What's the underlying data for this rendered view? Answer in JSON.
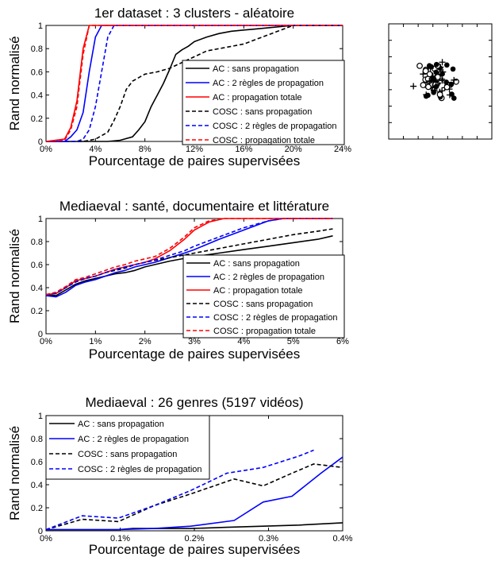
{
  "chart_data": [
    {
      "type": "line",
      "title": "1er dataset : 3 clusters - aléatoire",
      "xlabel": "Pourcentage de paires supervisées",
      "ylabel": "Rand normalisé",
      "xlim": [
        0,
        24
      ],
      "ylim": [
        0,
        1
      ],
      "xticks": [
        "0%",
        "4%",
        "8%",
        "12%",
        "16%",
        "20%",
        "24%"
      ],
      "yticks": [
        "0",
        "0.2",
        "0.4",
        "0.6",
        "0.8",
        "1"
      ],
      "legend_position": "right",
      "series": [
        {
          "name": "AC : sans propagation",
          "color": "#000000",
          "dash": "solid",
          "x": [
            0,
            5,
            6,
            7,
            7.5,
            8,
            8.5,
            9,
            9.5,
            10,
            10.5,
            11,
            11.5,
            12,
            13,
            14,
            15,
            16,
            17,
            18,
            19,
            20,
            24
          ],
          "y": [
            0,
            0,
            0.01,
            0.04,
            0.1,
            0.17,
            0.3,
            0.4,
            0.5,
            0.62,
            0.75,
            0.79,
            0.82,
            0.86,
            0.9,
            0.93,
            0.95,
            0.96,
            0.97,
            0.98,
            0.99,
            1,
            1
          ]
        },
        {
          "name": "AC : 2 règles de propagation",
          "color": "#0000ff",
          "dash": "solid",
          "x": [
            0,
            1.5,
            2,
            2.5,
            3,
            3.5,
            4,
            4.5,
            5,
            24
          ],
          "y": [
            0,
            0,
            0.04,
            0.1,
            0.25,
            0.6,
            0.9,
            1,
            1,
            1
          ]
        },
        {
          "name": "AC : propagation totale",
          "color": "#ff0000",
          "dash": "solid",
          "x": [
            0,
            1.5,
            2,
            2.5,
            3,
            3.5,
            24
          ],
          "y": [
            0,
            0.02,
            0.12,
            0.35,
            0.8,
            1,
            1
          ]
        },
        {
          "name": "COSC : sans propagation",
          "color": "#000000",
          "dash": "dashed",
          "x": [
            0,
            3,
            4,
            5,
            5.5,
            6,
            6.5,
            7,
            7.5,
            8,
            9,
            10,
            11,
            12,
            13,
            14,
            15,
            16,
            17,
            18,
            19,
            20,
            24
          ],
          "y": [
            0,
            0,
            0.02,
            0.08,
            0.18,
            0.3,
            0.45,
            0.52,
            0.55,
            0.58,
            0.6,
            0.63,
            0.68,
            0.73,
            0.78,
            0.8,
            0.82,
            0.84,
            0.88,
            0.92,
            0.96,
            1,
            1
          ]
        },
        {
          "name": "COSC : 2 règles de propagation",
          "color": "#0000ff",
          "dash": "dashed",
          "x": [
            0,
            2.5,
            3,
            3.5,
            4,
            4.5,
            5,
            5.5,
            24
          ],
          "y": [
            0,
            0,
            0.02,
            0.1,
            0.3,
            0.6,
            0.9,
            1,
            1
          ]
        },
        {
          "name": "COSC : propagation totale",
          "color": "#ff0000",
          "dash": "dashed",
          "x": [
            0,
            1.5,
            2,
            2.5,
            3,
            3.5,
            24
          ],
          "y": [
            0,
            0.01,
            0.1,
            0.3,
            0.75,
            1,
            1
          ]
        }
      ]
    },
    {
      "type": "line",
      "title": "Mediaeval : santé, documentaire et littérature",
      "xlabel": "Pourcentage de paires supervisées",
      "ylabel": "Rand normalisé",
      "xlim": [
        0,
        6
      ],
      "ylim": [
        0,
        1
      ],
      "xticks": [
        "0%",
        "1%",
        "2%",
        "3%",
        "4%",
        "5%",
        "6%"
      ],
      "yticks": [
        "0",
        "0.2",
        "0.4",
        "0.6",
        "0.8",
        "1"
      ],
      "legend_position": "bottom-right",
      "series": [
        {
          "name": "AC : sans propagation",
          "color": "#000000",
          "dash": "solid",
          "x": [
            0,
            0.2,
            0.4,
            0.6,
            0.8,
            1,
            1.2,
            1.4,
            1.6,
            1.8,
            2,
            2.5,
            3,
            3.5,
            4,
            4.5,
            5,
            5.5,
            5.8
          ],
          "y": [
            0.34,
            0.33,
            0.38,
            0.43,
            0.46,
            0.48,
            0.5,
            0.52,
            0.53,
            0.55,
            0.58,
            0.63,
            0.67,
            0.7,
            0.73,
            0.76,
            0.79,
            0.82,
            0.85
          ]
        },
        {
          "name": "AC : 2 règles de propagation",
          "color": "#0000ff",
          "dash": "solid",
          "x": [
            0,
            0.2,
            0.4,
            0.6,
            0.8,
            1,
            1.2,
            1.4,
            1.6,
            1.8,
            2,
            2.2,
            2.5,
            2.8,
            3,
            3.5,
            4,
            4.5,
            4.8,
            5.8
          ],
          "y": [
            0.33,
            0.32,
            0.36,
            0.42,
            0.45,
            0.47,
            0.5,
            0.53,
            0.55,
            0.58,
            0.6,
            0.62,
            0.66,
            0.7,
            0.73,
            0.82,
            0.9,
            0.98,
            1,
            1
          ]
        },
        {
          "name": "AC : propagation totale",
          "color": "#ff0000",
          "dash": "solid",
          "x": [
            0,
            0.2,
            0.4,
            0.6,
            0.8,
            1,
            1.2,
            1.4,
            1.6,
            1.8,
            2,
            2.2,
            2.5,
            2.8,
            3,
            3.3,
            3.6,
            5.8
          ],
          "y": [
            0.34,
            0.35,
            0.4,
            0.46,
            0.48,
            0.5,
            0.53,
            0.56,
            0.58,
            0.6,
            0.62,
            0.65,
            0.72,
            0.82,
            0.9,
            0.97,
            1,
            1
          ]
        },
        {
          "name": "COSC : sans propagation",
          "color": "#000000",
          "dash": "dashed",
          "x": [
            0,
            0.2,
            0.4,
            0.6,
            0.8,
            1,
            1.2,
            1.4,
            1.6,
            1.8,
            2,
            2.5,
            3,
            3.5,
            4,
            4.5,
            5,
            5.5,
            5.8
          ],
          "y": [
            0.34,
            0.35,
            0.4,
            0.45,
            0.48,
            0.5,
            0.53,
            0.55,
            0.57,
            0.6,
            0.62,
            0.66,
            0.7,
            0.74,
            0.78,
            0.82,
            0.86,
            0.89,
            0.91
          ]
        },
        {
          "name": "COSC : 2 règles de propagation",
          "color": "#0000ff",
          "dash": "dashed",
          "x": [
            0,
            0.2,
            0.4,
            0.6,
            0.8,
            1,
            1.2,
            1.4,
            1.6,
            1.8,
            2,
            2.2,
            2.5,
            2.8,
            3,
            3.5,
            4,
            4.5,
            4.8,
            5.8
          ],
          "y": [
            0.34,
            0.35,
            0.4,
            0.45,
            0.48,
            0.5,
            0.53,
            0.56,
            0.58,
            0.6,
            0.62,
            0.64,
            0.68,
            0.72,
            0.76,
            0.84,
            0.92,
            0.98,
            1,
            1
          ]
        },
        {
          "name": "COSC : propagation totale",
          "color": "#ff0000",
          "dash": "dashed",
          "x": [
            0,
            0.2,
            0.4,
            0.6,
            0.8,
            1,
            1.2,
            1.4,
            1.6,
            1.8,
            2,
            2.2,
            2.5,
            2.8,
            3,
            3.3,
            3.6,
            5.8
          ],
          "y": [
            0.34,
            0.36,
            0.41,
            0.47,
            0.49,
            0.52,
            0.55,
            0.58,
            0.6,
            0.63,
            0.65,
            0.67,
            0.74,
            0.84,
            0.92,
            0.98,
            1,
            1
          ]
        }
      ]
    },
    {
      "type": "line",
      "title": "Mediaeval : 26 genres (5197 vidéos)",
      "xlabel": "Pourcentage de paires supervisées",
      "ylabel": "Rand normalisé",
      "xlim": [
        0,
        0.41
      ],
      "ylim": [
        0,
        1
      ],
      "xticks": [
        "0%",
        "0.1%",
        "0.2%",
        "0.3%",
        "0.4%"
      ],
      "yticks": [
        "0",
        "0.2",
        "0.4",
        "0.6",
        "0.8",
        "1"
      ],
      "legend_position": "top-left",
      "series": [
        {
          "name": "AC : sans propagation",
          "color": "#000000",
          "dash": "solid",
          "x": [
            0,
            0.05,
            0.1,
            0.12,
            0.15,
            0.2,
            0.25,
            0.3,
            0.35,
            0.41
          ],
          "y": [
            0.01,
            0.01,
            0.01,
            0.02,
            0.02,
            0.02,
            0.03,
            0.04,
            0.05,
            0.07
          ]
        },
        {
          "name": "AC : 2 règles de propagation",
          "color": "#0000ff",
          "dash": "solid",
          "x": [
            0,
            0.05,
            0.1,
            0.15,
            0.2,
            0.26,
            0.3,
            0.34,
            0.38,
            0.41
          ],
          "y": [
            0.01,
            0.01,
            0.01,
            0.02,
            0.04,
            0.09,
            0.25,
            0.3,
            0.5,
            0.64
          ]
        },
        {
          "name": "COSC : sans propagation",
          "color": "#000000",
          "dash": "dashed",
          "x": [
            0,
            0.05,
            0.1,
            0.15,
            0.2,
            0.26,
            0.3,
            0.34,
            0.37,
            0.41
          ],
          "y": [
            0.01,
            0.1,
            0.08,
            0.22,
            0.32,
            0.45,
            0.39,
            0.5,
            0.58,
            0.55
          ]
        },
        {
          "name": "COSC : 2 règles de propagation",
          "color": "#0000ff",
          "dash": "dashed",
          "x": [
            0,
            0.05,
            0.1,
            0.15,
            0.2,
            0.25,
            0.3,
            0.35,
            0.37
          ],
          "y": [
            0.01,
            0.13,
            0.11,
            0.22,
            0.35,
            0.5,
            0.55,
            0.65,
            0.7
          ]
        }
      ]
    }
  ]
}
